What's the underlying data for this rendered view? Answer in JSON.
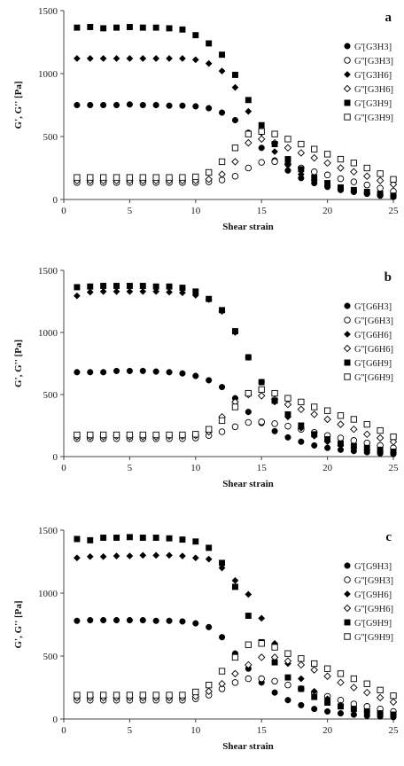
{
  "chart_data": [
    {
      "type": "scatter",
      "panel": "a",
      "xlabel": "Shear strain",
      "ylabel": "G', G'' [Pa]",
      "xlim": [
        0,
        25
      ],
      "ylim": [
        0,
        1500
      ],
      "xticks": [
        0,
        5,
        10,
        15,
        20,
        25
      ],
      "yticks": [
        0,
        500,
        1000,
        1500
      ],
      "grid": false,
      "legend_position": "right",
      "series": [
        {
          "name": "G'[G3H3]",
          "marker": "circle-filled",
          "x": [
            1,
            2,
            3,
            4,
            5,
            6,
            7,
            8,
            9,
            10,
            11,
            12,
            13,
            14,
            15,
            16,
            17,
            18,
            19,
            20,
            21,
            22,
            23,
            24,
            25
          ],
          "y": [
            750,
            750,
            750,
            750,
            755,
            750,
            750,
            745,
            745,
            740,
            725,
            690,
            630,
            530,
            410,
            310,
            230,
            170,
            130,
            100,
            75,
            60,
            45,
            30,
            20
          ]
        },
        {
          "name": "G''[G3H3]",
          "marker": "circle-open",
          "x": [
            1,
            2,
            3,
            4,
            5,
            6,
            7,
            8,
            9,
            10,
            11,
            12,
            13,
            14,
            15,
            16,
            17,
            18,
            19,
            20,
            21,
            22,
            23,
            24,
            25
          ],
          "y": [
            135,
            135,
            135,
            135,
            135,
            135,
            135,
            135,
            135,
            135,
            140,
            155,
            185,
            250,
            295,
            300,
            280,
            250,
            220,
            195,
            165,
            140,
            115,
            90,
            65
          ]
        },
        {
          "name": "G'[G3H6]",
          "marker": "diamond-filled",
          "x": [
            1,
            2,
            3,
            4,
            5,
            6,
            7,
            8,
            9,
            10,
            11,
            12,
            13,
            14,
            15,
            16,
            17,
            18,
            19,
            20,
            21,
            22,
            23,
            24,
            25
          ],
          "y": [
            1120,
            1120,
            1120,
            1120,
            1120,
            1120,
            1120,
            1120,
            1120,
            1110,
            1080,
            1020,
            890,
            700,
            530,
            380,
            280,
            200,
            150,
            110,
            85,
            70,
            55,
            40,
            30
          ]
        },
        {
          "name": "G''[G3H6]",
          "marker": "diamond-open",
          "x": [
            1,
            2,
            3,
            4,
            5,
            6,
            7,
            8,
            9,
            10,
            11,
            12,
            13,
            14,
            15,
            16,
            17,
            18,
            19,
            20,
            21,
            22,
            23,
            24,
            25
          ],
          "y": [
            150,
            150,
            150,
            150,
            150,
            150,
            150,
            150,
            150,
            150,
            160,
            200,
            300,
            450,
            480,
            450,
            410,
            370,
            330,
            290,
            250,
            220,
            185,
            150,
            120
          ]
        },
        {
          "name": "G'[G3H9]",
          "marker": "square-filled",
          "x": [
            1,
            2,
            3,
            4,
            5,
            6,
            7,
            8,
            9,
            10,
            11,
            12,
            13,
            14,
            15,
            16,
            17,
            18,
            19,
            20,
            21,
            22,
            23,
            24,
            25
          ],
          "y": [
            1365,
            1370,
            1360,
            1365,
            1370,
            1365,
            1365,
            1360,
            1350,
            1305,
            1240,
            1150,
            990,
            790,
            590,
            440,
            320,
            240,
            175,
            130,
            95,
            75,
            60,
            45,
            30
          ]
        },
        {
          "name": "G''[G3H9]",
          "marker": "square-open",
          "x": [
            1,
            2,
            3,
            4,
            5,
            6,
            7,
            8,
            9,
            10,
            11,
            12,
            13,
            14,
            15,
            16,
            17,
            18,
            19,
            20,
            21,
            22,
            23,
            24,
            25
          ],
          "y": [
            175,
            175,
            175,
            175,
            175,
            175,
            175,
            175,
            175,
            180,
            215,
            300,
            410,
            520,
            540,
            520,
            480,
            440,
            400,
            360,
            320,
            290,
            250,
            205,
            160
          ]
        }
      ]
    },
    {
      "type": "scatter",
      "panel": "b",
      "xlabel": "Shear strain",
      "ylabel": "G', G'' [Pa]",
      "xlim": [
        0,
        25
      ],
      "ylim": [
        0,
        1500
      ],
      "xticks": [
        0,
        5,
        10,
        15,
        20,
        25
      ],
      "yticks": [
        0,
        500,
        1000,
        1500
      ],
      "grid": false,
      "legend_position": "right",
      "series": [
        {
          "name": "G'[G6H3]",
          "marker": "circle-filled",
          "x": [
            1,
            2,
            3,
            4,
            5,
            6,
            7,
            8,
            9,
            10,
            11,
            12,
            13,
            14,
            15,
            16,
            17,
            18,
            19,
            20,
            21,
            22,
            23,
            24,
            25
          ],
          "y": [
            680,
            680,
            680,
            690,
            690,
            690,
            685,
            680,
            670,
            650,
            615,
            560,
            470,
            360,
            270,
            205,
            155,
            120,
            90,
            70,
            55,
            45,
            35,
            25,
            20
          ]
        },
        {
          "name": "G''[G6H3]",
          "marker": "circle-open",
          "x": [
            1,
            2,
            3,
            4,
            5,
            6,
            7,
            8,
            9,
            10,
            11,
            12,
            13,
            14,
            15,
            16,
            17,
            18,
            19,
            20,
            21,
            22,
            23,
            24,
            25
          ],
          "y": [
            145,
            145,
            145,
            145,
            145,
            145,
            145,
            145,
            145,
            150,
            170,
            200,
            240,
            275,
            280,
            265,
            245,
            220,
            195,
            170,
            150,
            130,
            110,
            90,
            70
          ]
        },
        {
          "name": "G'[G6H6]",
          "marker": "diamond-filled",
          "x": [
            1,
            2,
            3,
            4,
            5,
            6,
            7,
            8,
            9,
            10,
            11,
            12,
            13,
            14,
            15,
            16,
            17,
            18,
            19,
            20,
            21,
            22,
            23,
            24,
            25
          ],
          "y": [
            1295,
            1325,
            1330,
            1330,
            1330,
            1330,
            1330,
            1325,
            1320,
            1300,
            1265,
            1170,
            1000,
            800,
            600,
            440,
            320,
            230,
            165,
            120,
            90,
            70,
            55,
            40,
            30
          ]
        },
        {
          "name": "G''[G6H6]",
          "marker": "diamond-open",
          "x": [
            1,
            2,
            3,
            4,
            5,
            6,
            7,
            8,
            9,
            10,
            11,
            12,
            13,
            14,
            15,
            16,
            17,
            18,
            19,
            20,
            21,
            22,
            23,
            24,
            25
          ],
          "y": [
            160,
            160,
            160,
            165,
            160,
            160,
            160,
            165,
            165,
            170,
            200,
            320,
            440,
            500,
            490,
            460,
            420,
            380,
            340,
            300,
            260,
            220,
            180,
            150,
            120
          ]
        },
        {
          "name": "G'[G6H9]",
          "marker": "square-filled",
          "x": [
            1,
            2,
            3,
            4,
            5,
            6,
            7,
            8,
            9,
            10,
            11,
            12,
            13,
            14,
            15,
            16,
            17,
            18,
            19,
            20,
            21,
            22,
            23,
            24,
            25
          ],
          "y": [
            1365,
            1370,
            1375,
            1375,
            1375,
            1375,
            1370,
            1370,
            1360,
            1330,
            1270,
            1180,
            1010,
            800,
            600,
            450,
            340,
            250,
            180,
            140,
            105,
            85,
            70,
            55,
            40
          ]
        },
        {
          "name": "G''[G6H9]",
          "marker": "square-open",
          "x": [
            1,
            2,
            3,
            4,
            5,
            6,
            7,
            8,
            9,
            10,
            11,
            12,
            13,
            14,
            15,
            16,
            17,
            18,
            19,
            20,
            21,
            22,
            23,
            24,
            25
          ],
          "y": [
            175,
            175,
            175,
            175,
            175,
            175,
            175,
            175,
            175,
            180,
            220,
            290,
            400,
            510,
            540,
            510,
            470,
            440,
            400,
            370,
            330,
            300,
            260,
            210,
            160
          ]
        }
      ]
    },
    {
      "type": "scatter",
      "panel": "c",
      "xlabel": "Shear strain",
      "ylabel": "G', G'' [Pa]",
      "xlim": [
        0,
        25
      ],
      "ylim": [
        0,
        1500
      ],
      "xticks": [
        0,
        5,
        10,
        15,
        20,
        25
      ],
      "yticks": [
        0,
        500,
        1000,
        1500
      ],
      "grid": false,
      "legend_position": "right",
      "series": [
        {
          "name": "G'[G9H3]",
          "marker": "circle-filled",
          "x": [
            1,
            2,
            3,
            4,
            5,
            6,
            7,
            8,
            9,
            10,
            11,
            12,
            13,
            14,
            15,
            16,
            17,
            18,
            19,
            20,
            21,
            22,
            23,
            24,
            25
          ],
          "y": [
            780,
            785,
            785,
            785,
            785,
            785,
            780,
            780,
            775,
            760,
            730,
            650,
            520,
            400,
            290,
            210,
            150,
            110,
            80,
            60,
            45,
            35,
            25,
            20,
            15
          ]
        },
        {
          "name": "G''[G9H3]",
          "marker": "circle-open",
          "x": [
            1,
            2,
            3,
            4,
            5,
            6,
            7,
            8,
            9,
            10,
            11,
            12,
            13,
            14,
            15,
            16,
            17,
            18,
            19,
            20,
            21,
            22,
            23,
            24,
            25
          ],
          "y": [
            150,
            150,
            150,
            150,
            150,
            150,
            150,
            150,
            150,
            160,
            190,
            240,
            290,
            320,
            320,
            300,
            270,
            240,
            210,
            180,
            150,
            120,
            100,
            80,
            60
          ]
        },
        {
          "name": "G'[G9H6]",
          "marker": "diamond-filled",
          "x": [
            1,
            2,
            3,
            4,
            5,
            6,
            7,
            8,
            9,
            10,
            11,
            12,
            13,
            14,
            15,
            16,
            17,
            18,
            19,
            20,
            21,
            22,
            23,
            24,
            25
          ],
          "y": [
            1280,
            1290,
            1290,
            1295,
            1295,
            1300,
            1300,
            1300,
            1295,
            1280,
            1270,
            1200,
            1100,
            990,
            800,
            600,
            440,
            320,
            220,
            160,
            110,
            80,
            60,
            45,
            30
          ]
        },
        {
          "name": "G''[G9H6]",
          "marker": "diamond-open",
          "x": [
            1,
            2,
            3,
            4,
            5,
            6,
            7,
            8,
            9,
            10,
            11,
            12,
            13,
            14,
            15,
            16,
            17,
            18,
            19,
            20,
            21,
            22,
            23,
            24,
            25
          ],
          "y": [
            170,
            170,
            170,
            170,
            170,
            170,
            170,
            170,
            170,
            180,
            220,
            280,
            360,
            430,
            490,
            490,
            460,
            430,
            390,
            340,
            290,
            250,
            210,
            170,
            135
          ]
        },
        {
          "name": "G'[G9H9]",
          "marker": "square-filled",
          "x": [
            1,
            2,
            3,
            4,
            5,
            6,
            7,
            8,
            9,
            10,
            11,
            12,
            13,
            14,
            15,
            16,
            17,
            18,
            19,
            20,
            21,
            22,
            23,
            24,
            25
          ],
          "y": [
            1430,
            1420,
            1440,
            1440,
            1445,
            1440,
            1440,
            1435,
            1425,
            1410,
            1360,
            1240,
            1050,
            820,
            610,
            450,
            330,
            240,
            175,
            130,
            100,
            80,
            60,
            45,
            35
          ]
        },
        {
          "name": "G''[G9H9]",
          "marker": "square-open",
          "x": [
            1,
            2,
            3,
            4,
            5,
            6,
            7,
            8,
            9,
            10,
            11,
            12,
            13,
            14,
            15,
            16,
            17,
            18,
            19,
            20,
            21,
            22,
            23,
            24,
            25
          ],
          "y": [
            190,
            190,
            190,
            190,
            190,
            190,
            190,
            190,
            190,
            215,
            270,
            380,
            490,
            590,
            600,
            570,
            520,
            480,
            440,
            400,
            360,
            320,
            280,
            230,
            185
          ]
        }
      ]
    }
  ]
}
